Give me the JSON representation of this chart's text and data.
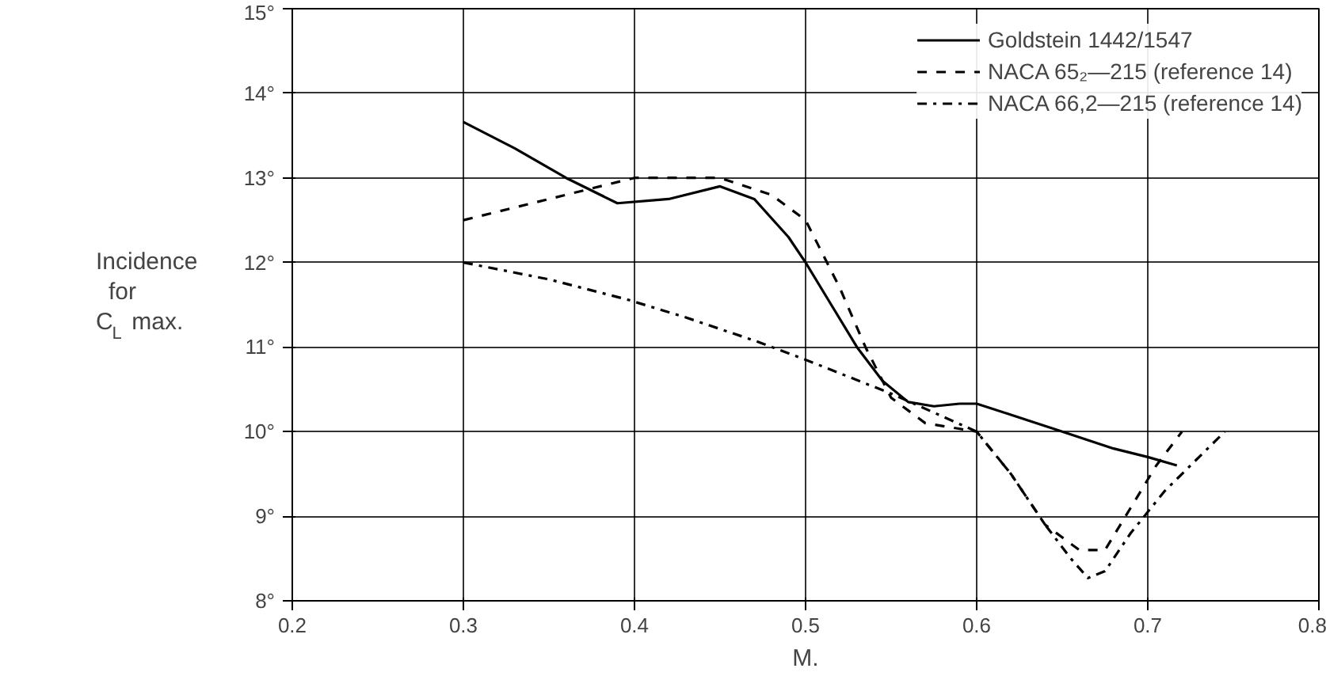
{
  "chart_data": {
    "type": "line",
    "xlabel": "M.",
    "ylabel": "Incidence for C$_{L}$ max.",
    "xlim": [
      0.2,
      0.8
    ],
    "ylim": [
      8,
      15
    ],
    "xticks": [
      0.2,
      0.3,
      0.4,
      0.5,
      0.6,
      0.7,
      0.8
    ],
    "yticks": [
      {
        "value": 8,
        "label": "8°"
      },
      {
        "value": 9,
        "label": "9°"
      },
      {
        "value": 10,
        "label": "10°"
      },
      {
        "value": 11,
        "label": "11°"
      },
      {
        "value": 12,
        "label": "12°"
      },
      {
        "value": 13,
        "label": "13°"
      },
      {
        "value": 14,
        "label": "14°"
      },
      {
        "value": 15,
        "label": "15°"
      }
    ],
    "grid": true,
    "legend": "top right",
    "marker": "none",
    "series": [
      {
        "name": "Goldstein 1442/1547",
        "color": "#000000",
        "line_style": "solid",
        "x": [
          0.3,
          0.33,
          0.36,
          0.39,
          0.42,
          0.45,
          0.47,
          0.49,
          0.5,
          0.515,
          0.53,
          0.545,
          0.56,
          0.575,
          0.59,
          0.6,
          0.62,
          0.65,
          0.68,
          0.7,
          0.717
        ],
        "values": [
          13.66,
          13.35,
          13.0,
          12.7,
          12.75,
          12.9,
          12.75,
          12.3,
          12.0,
          11.5,
          11.0,
          10.6,
          10.35,
          10.3,
          10.33,
          10.33,
          10.2,
          10.0,
          9.8,
          9.7,
          9.6
        ]
      },
      {
        "name": "NACA 65₂—215 (reference 14)",
        "color": "#000000",
        "line_style": "dashed",
        "x": [
          0.3,
          0.35,
          0.4,
          0.45,
          0.48,
          0.5,
          0.51,
          0.52,
          0.535,
          0.55,
          0.57,
          0.6,
          0.62,
          0.64,
          0.66,
          0.675,
          0.69,
          0.705,
          0.72
        ],
        "values": [
          12.5,
          12.75,
          13.0,
          13.0,
          12.8,
          12.5,
          12.1,
          11.7,
          11.0,
          10.4,
          10.1,
          10.0,
          9.5,
          8.9,
          8.6,
          8.6,
          9.1,
          9.6,
          10.0
        ]
      },
      {
        "name": "NACA 66,2—215 (reference 14)",
        "color": "#000000",
        "line_style": "dashdot",
        "x": [
          0.3,
          0.35,
          0.396,
          0.43,
          0.471,
          0.5,
          0.55,
          0.6,
          0.62,
          0.64,
          0.655,
          0.665,
          0.675,
          0.69,
          0.71,
          0.73,
          0.745
        ],
        "values": [
          12.0,
          11.8,
          11.56,
          11.35,
          11.07,
          10.85,
          10.45,
          10.0,
          9.5,
          8.9,
          8.5,
          8.27,
          8.35,
          8.8,
          9.3,
          9.7,
          10.0
        ]
      }
    ]
  }
}
